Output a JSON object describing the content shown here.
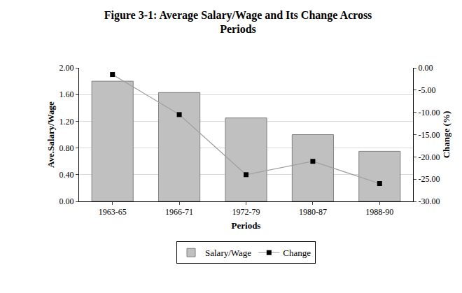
{
  "chart_data": {
    "type": "bar",
    "title": "Figure 3-1: Average Salary/Wage and Its Change Across Periods",
    "x_label": "Periods",
    "y_label": "Ave.Salary/Wage",
    "y2_label": "Change (%)",
    "categories": [
      "1963-65",
      "1966-71",
      "1972-79",
      "1980-87",
      "1988-90"
    ],
    "series": [
      {
        "name": "Salary/Wage",
        "type": "bar",
        "color": "#c0c0c0",
        "values": [
          1.8,
          1.63,
          1.25,
          1.0,
          0.75
        ]
      },
      {
        "name": "Change",
        "type": "line",
        "color": "#000000",
        "marker": "square",
        "line_style": "solid",
        "axis": "y2",
        "values": [
          -1.5,
          -10.5,
          -24.0,
          -21.0,
          -26.0
        ]
      }
    ],
    "ylim": [
      0,
      2
    ],
    "yticks": [
      {
        "value": 0,
        "label": "0.00"
      },
      {
        "value": 0.4,
        "label": "0.40"
      },
      {
        "value": 0.8,
        "label": "0.80"
      },
      {
        "value": 1.2,
        "label": "1.20"
      },
      {
        "value": 1.6,
        "label": "1.60"
      },
      {
        "value": 2,
        "label": "2.00"
      }
    ],
    "y2lim": [
      -30,
      0
    ],
    "y2ticks": [
      {
        "value": 0,
        "label": "0.00"
      },
      {
        "value": -5,
        "label": "-5.00"
      },
      {
        "value": -10,
        "label": "-10.00"
      },
      {
        "value": -15,
        "label": "-15.00"
      },
      {
        "value": -20,
        "label": "-20.00"
      },
      {
        "value": -25,
        "label": "-25.00"
      },
      {
        "value": -30,
        "label": "-30.00"
      }
    ],
    "grid": true,
    "legend": "bottom"
  }
}
